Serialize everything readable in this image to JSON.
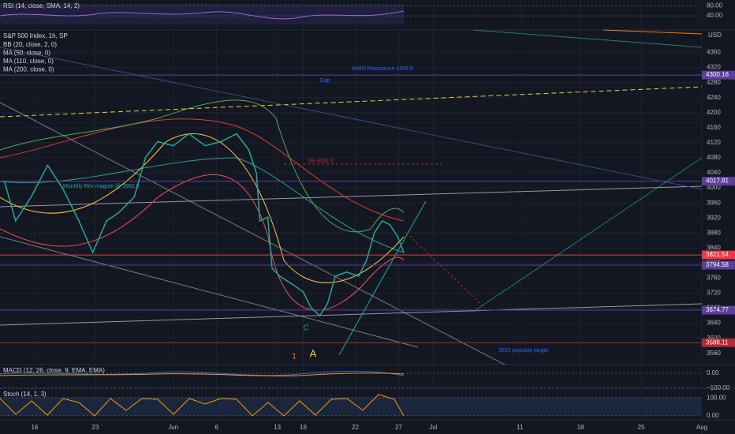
{
  "chart_data": {
    "type": "line",
    "title": "S&P 500 Index, 1h, SP",
    "indicators": [
      "BB (20, close, 2, 0)",
      "MA (50, close, 0)",
      "MA (110, close, 0)",
      "MA (200, close, 0)"
    ],
    "currency": "USD",
    "x": [
      -3.5,
      -2.2,
      -0.4,
      1.5,
      3.3,
      5.1,
      6.7,
      8.3,
      9.7,
      11.5,
      12.8,
      14.2,
      16.0,
      17.8,
      19.7,
      21.5,
      23.3,
      24.7,
      25.6,
      26.0,
      26.9,
      27.4,
      28.3,
      29.7,
      31.0,
      31.9,
      32.9,
      33.8,
      34.7,
      36.0,
      37.4,
      38.3,
      39.2,
      40.1,
      41.0,
      41.9,
      42.6
    ],
    "series": [
      {
        "color": "#26a69a",
        "values": [
          4018,
          3912,
          3976,
          4060,
          3996,
          3912,
          3828,
          3912,
          3934,
          3976,
          4081,
          4123,
          4112,
          4144,
          4112,
          4123,
          4144,
          4102,
          4039,
          3912,
          3922,
          3786,
          3765,
          3744,
          3723,
          3681,
          3660,
          3692,
          3765,
          3776,
          3765,
          3807,
          3881,
          3912,
          3902,
          3870,
          3828
        ]
      }
    ],
    "xlim": [
      -4,
      77
    ],
    "xticks": [
      {
        "value": 0,
        "label": "16"
      },
      {
        "value": 7,
        "label": "23"
      },
      {
        "value": 16,
        "label": "Jun"
      },
      {
        "value": 21,
        "label": "6"
      },
      {
        "value": 28,
        "label": "13"
      },
      {
        "value": 31,
        "label": "16"
      },
      {
        "value": 37,
        "label": "22"
      },
      {
        "value": 42,
        "label": "27"
      },
      {
        "value": 46,
        "label": "Jul"
      },
      {
        "value": 56,
        "label": "11"
      },
      {
        "value": 63,
        "label": "18"
      },
      {
        "value": 70,
        "label": "25"
      },
      {
        "value": 77,
        "label": "Aug"
      }
    ],
    "ylim": [
      3530,
      4420
    ],
    "yticks": [
      3560,
      3600,
      3640,
      3680,
      3720,
      3760,
      3800,
      3840,
      3880,
      3920,
      3960,
      4000,
      4040,
      4080,
      4120,
      4160,
      4200,
      4240,
      4280,
      4320,
      4360
    ],
    "grid": true,
    "levels": [
      {
        "value": 4300.16,
        "color": "#5b3f99"
      },
      {
        "value": 4017.81,
        "color": "#5b3f99"
      },
      {
        "value": 3821.54,
        "color": "#f23645"
      },
      {
        "value": 3794.58,
        "color": "#5b3f99"
      },
      {
        "value": 3674.77,
        "color": "#5b3f99"
      },
      {
        "value": 3588.11,
        "color": "#b22833"
      }
    ],
    "annotations": [
      "MAIN Resistance 4308.8",
      "Gap",
      "Monthly Rev magnet @ 3982.6",
      "SB 4062.4",
      "3555 possible target",
      "C",
      "1",
      "A"
    ],
    "panels": [
      {
        "title": "RSI (14, close, SMA, 14, 2)",
        "ylim": [
          -15,
          102
        ],
        "yticks": [
          {
            "value": 80,
            "label": "80.00"
          },
          {
            "value": 40,
            "label": "40.00"
          }
        ]
      },
      {
        "title": "MACD (12, 26, close, 9, EMA, EMA)",
        "ylim": [
          -100,
          58
        ],
        "yticks": [
          {
            "value": 0,
            "label": "0.00"
          },
          {
            "value": -100,
            "label": "−100.00"
          }
        ]
      },
      {
        "title": "Stoch (14, 1, 3)",
        "ylim": [
          -23,
          155
        ],
        "yticks": [
          {
            "value": 100,
            "label": "100.00"
          },
          {
            "value": 0,
            "label": "0.00"
          }
        ]
      }
    ]
  }
}
